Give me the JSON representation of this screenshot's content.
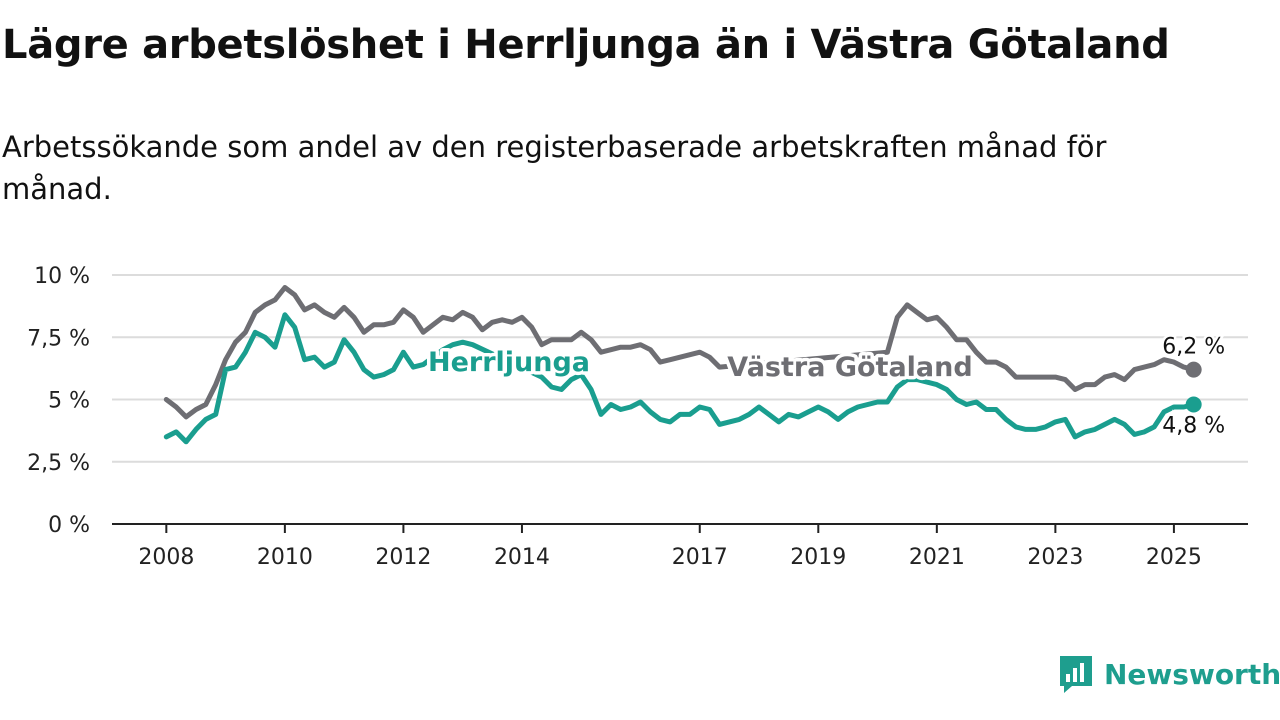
{
  "title": "Lägre arbetslöshet i Herrljunga än i Västra Götaland",
  "subtitle": "Arbetssökande som andel av den registerbaserade arbetskraften månad för månad.",
  "brand": {
    "name": "Newsworthy",
    "icon": "newsworthy-logo-icon",
    "color": "#1e9e8e"
  },
  "chart_data": {
    "type": "line",
    "title": "Lägre arbetslöshet i Herrljunga än i Västra Götaland",
    "subtitle": "Arbetssökande som andel av den registerbaserade arbetskraften månad för månad.",
    "xlabel": "",
    "ylabel": "",
    "x_ticks": [
      "2008",
      "2010",
      "2012",
      "2014",
      "2017",
      "2019",
      "2021",
      "2023",
      "2025"
    ],
    "y_ticks": [
      "0 %",
      "2,5 %",
      "5 %",
      "7,5 %",
      "10 %"
    ],
    "ylim": [
      0,
      10
    ],
    "xlim": [
      "2007-02",
      "2026-04"
    ],
    "grid": true,
    "legend": "inline labels",
    "series": [
      {
        "name": "Västra Götaland",
        "color": "#6e6e73",
        "end_label": "6,2 %",
        "points": [
          [
            "2008-01",
            5.0
          ],
          [
            "2008-03",
            4.7
          ],
          [
            "2008-05",
            4.3
          ],
          [
            "2008-07",
            4.6
          ],
          [
            "2008-09",
            4.8
          ],
          [
            "2008-11",
            5.6
          ],
          [
            "2009-01",
            6.6
          ],
          [
            "2009-03",
            7.3
          ],
          [
            "2009-05",
            7.7
          ],
          [
            "2009-07",
            8.5
          ],
          [
            "2009-09",
            8.8
          ],
          [
            "2009-11",
            9.0
          ],
          [
            "2010-01",
            9.5
          ],
          [
            "2010-03",
            9.2
          ],
          [
            "2010-05",
            8.6
          ],
          [
            "2010-07",
            8.8
          ],
          [
            "2010-09",
            8.5
          ],
          [
            "2010-11",
            8.3
          ],
          [
            "2011-01",
            8.7
          ],
          [
            "2011-03",
            8.3
          ],
          [
            "2011-05",
            7.7
          ],
          [
            "2011-07",
            8.0
          ],
          [
            "2011-09",
            8.0
          ],
          [
            "2011-11",
            8.1
          ],
          [
            "2012-01",
            8.6
          ],
          [
            "2012-03",
            8.3
          ],
          [
            "2012-05",
            7.7
          ],
          [
            "2012-07",
            8.0
          ],
          [
            "2012-09",
            8.3
          ],
          [
            "2012-11",
            8.2
          ],
          [
            "2013-01",
            8.5
          ],
          [
            "2013-03",
            8.3
          ],
          [
            "2013-05",
            7.8
          ],
          [
            "2013-07",
            8.1
          ],
          [
            "2013-09",
            8.2
          ],
          [
            "2013-11",
            8.1
          ],
          [
            "2014-01",
            8.3
          ],
          [
            "2014-03",
            7.9
          ],
          [
            "2014-05",
            7.2
          ],
          [
            "2014-07",
            7.4
          ],
          [
            "2014-09",
            7.4
          ],
          [
            "2014-11",
            7.4
          ],
          [
            "2015-01",
            7.7
          ],
          [
            "2015-03",
            7.4
          ],
          [
            "2015-05",
            6.9
          ],
          [
            "2015-07",
            7.0
          ],
          [
            "2015-09",
            7.1
          ],
          [
            "2015-11",
            7.1
          ],
          [
            "2016-01",
            7.2
          ],
          [
            "2016-03",
            7.0
          ],
          [
            "2016-05",
            6.5
          ],
          [
            "2016-07",
            6.6
          ],
          [
            "2016-09",
            6.7
          ],
          [
            "2016-11",
            6.8
          ],
          [
            "2017-01",
            6.9
          ],
          [
            "2017-03",
            6.7
          ],
          [
            "2017-05",
            6.3
          ],
          [
            "2020-03",
            6.9
          ],
          [
            "2020-05",
            8.3
          ],
          [
            "2020-07",
            8.8
          ],
          [
            "2020-09",
            8.5
          ],
          [
            "2020-11",
            8.2
          ],
          [
            "2021-01",
            8.3
          ],
          [
            "2021-03",
            7.9
          ],
          [
            "2021-05",
            7.4
          ],
          [
            "2021-07",
            7.4
          ],
          [
            "2021-09",
            6.9
          ],
          [
            "2021-11",
            6.5
          ],
          [
            "2022-01",
            6.5
          ],
          [
            "2022-03",
            6.3
          ],
          [
            "2022-05",
            5.9
          ],
          [
            "2022-07",
            5.9
          ],
          [
            "2022-09",
            5.9
          ],
          [
            "2022-11",
            5.9
          ],
          [
            "2023-01",
            5.9
          ],
          [
            "2023-03",
            5.8
          ],
          [
            "2023-05",
            5.4
          ],
          [
            "2023-07",
            5.6
          ],
          [
            "2023-09",
            5.6
          ],
          [
            "2023-11",
            5.9
          ],
          [
            "2024-01",
            6.0
          ],
          [
            "2024-03",
            5.8
          ],
          [
            "2024-05",
            6.2
          ],
          [
            "2024-07",
            6.3
          ],
          [
            "2024-09",
            6.4
          ],
          [
            "2024-11",
            6.6
          ],
          [
            "2025-01",
            6.5
          ],
          [
            "2025-03",
            6.3
          ],
          [
            "2025-05",
            6.2
          ]
        ]
      },
      {
        "name": "Herrljunga",
        "color": "#1a9e8f",
        "end_label": "4,8 %",
        "points": [
          [
            "2008-01",
            3.5
          ],
          [
            "2008-03",
            3.7
          ],
          [
            "2008-05",
            3.3
          ],
          [
            "2008-07",
            3.8
          ],
          [
            "2008-09",
            4.2
          ],
          [
            "2008-11",
            4.4
          ],
          [
            "2009-01",
            6.2
          ],
          [
            "2009-03",
            6.3
          ],
          [
            "2009-05",
            6.9
          ],
          [
            "2009-07",
            7.7
          ],
          [
            "2009-09",
            7.5
          ],
          [
            "2009-11",
            7.1
          ],
          [
            "2010-01",
            8.4
          ],
          [
            "2010-03",
            7.9
          ],
          [
            "2010-05",
            6.6
          ],
          [
            "2010-07",
            6.7
          ],
          [
            "2010-09",
            6.3
          ],
          [
            "2010-11",
            6.5
          ],
          [
            "2011-01",
            7.4
          ],
          [
            "2011-03",
            6.9
          ],
          [
            "2011-05",
            6.2
          ],
          [
            "2011-07",
            5.9
          ],
          [
            "2011-09",
            6.0
          ],
          [
            "2011-11",
            6.2
          ],
          [
            "2012-01",
            6.9
          ],
          [
            "2012-03",
            6.3
          ],
          [
            "2012-05",
            6.4
          ],
          [
            "2012-09",
            7.0
          ],
          [
            "2012-11",
            7.2
          ],
          [
            "2013-01",
            7.3
          ],
          [
            "2013-03",
            7.2
          ],
          [
            "2014-05",
            5.9
          ],
          [
            "2014-07",
            5.5
          ],
          [
            "2014-09",
            5.4
          ],
          [
            "2014-11",
            5.8
          ],
          [
            "2015-01",
            6.0
          ],
          [
            "2015-03",
            5.4
          ],
          [
            "2015-05",
            4.4
          ],
          [
            "2015-07",
            4.8
          ],
          [
            "2015-09",
            4.6
          ],
          [
            "2015-11",
            4.7
          ],
          [
            "2016-01",
            4.9
          ],
          [
            "2016-03",
            4.5
          ],
          [
            "2016-05",
            4.2
          ],
          [
            "2016-07",
            4.1
          ],
          [
            "2016-09",
            4.4
          ],
          [
            "2016-11",
            4.4
          ],
          [
            "2017-01",
            4.7
          ],
          [
            "2017-03",
            4.6
          ],
          [
            "2017-05",
            4.0
          ],
          [
            "2017-07",
            4.1
          ],
          [
            "2017-09",
            4.2
          ],
          [
            "2017-11",
            4.4
          ],
          [
            "2018-01",
            4.7
          ],
          [
            "2018-03",
            4.4
          ],
          [
            "2018-05",
            4.1
          ],
          [
            "2018-07",
            4.4
          ],
          [
            "2018-09",
            4.3
          ],
          [
            "2018-11",
            4.5
          ],
          [
            "2019-01",
            4.7
          ],
          [
            "2019-03",
            4.5
          ],
          [
            "2019-05",
            4.2
          ],
          [
            "2019-07",
            4.5
          ],
          [
            "2019-09",
            4.7
          ],
          [
            "2019-11",
            4.8
          ],
          [
            "2020-01",
            4.9
          ],
          [
            "2020-03",
            4.9
          ],
          [
            "2020-05",
            5.5
          ],
          [
            "2020-07",
            5.8
          ],
          [
            "2020-09",
            5.8
          ],
          [
            "2020-11",
            5.7
          ],
          [
            "2021-01",
            5.6
          ],
          [
            "2021-03",
            5.4
          ],
          [
            "2021-05",
            5.0
          ],
          [
            "2021-07",
            4.8
          ],
          [
            "2021-09",
            4.9
          ],
          [
            "2021-11",
            4.6
          ],
          [
            "2022-01",
            4.6
          ],
          [
            "2022-03",
            4.2
          ],
          [
            "2022-05",
            3.9
          ],
          [
            "2022-07",
            3.8
          ],
          [
            "2022-09",
            3.8
          ],
          [
            "2022-11",
            3.9
          ],
          [
            "2023-01",
            4.1
          ],
          [
            "2023-03",
            4.2
          ],
          [
            "2023-05",
            3.5
          ],
          [
            "2023-07",
            3.7
          ],
          [
            "2023-09",
            3.8
          ],
          [
            "2023-11",
            4.0
          ],
          [
            "2024-01",
            4.2
          ],
          [
            "2024-03",
            4.0
          ],
          [
            "2024-05",
            3.6
          ],
          [
            "2024-07",
            3.7
          ],
          [
            "2024-09",
            3.9
          ],
          [
            "2024-11",
            4.5
          ],
          [
            "2025-01",
            4.7
          ],
          [
            "2025-03",
            4.7
          ],
          [
            "2025-05",
            4.8
          ]
        ]
      }
    ]
  }
}
